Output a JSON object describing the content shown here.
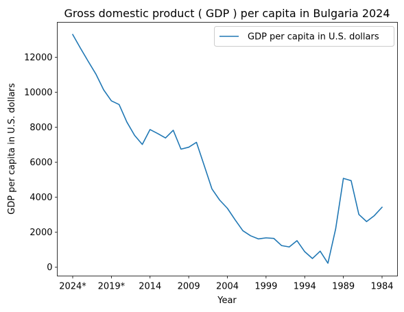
{
  "chart_data": {
    "type": "line",
    "title": "Gross domestic product ( GDP ) per capita in Bulgaria 2024",
    "xlabel": "Year",
    "ylabel": "GDP per capita in U.S. dollars",
    "x": [
      "2024*",
      "2023*",
      "2022*",
      "2021*",
      "2020*",
      "2019*",
      "2018",
      "2017",
      "2016",
      "2015",
      "2014",
      "2013",
      "2012",
      "2011",
      "2010",
      "2009",
      "2008",
      "2007",
      "2006",
      "2005",
      "2004",
      "2003",
      "2002",
      "2001",
      "2000",
      "1999",
      "1998",
      "1997",
      "1996",
      "1995",
      "1994",
      "1993",
      "1992",
      "1991",
      "1990",
      "1989",
      "1988",
      "1987",
      "1986",
      "1985",
      "1984"
    ],
    "x_tick_labels": [
      "2024*",
      "2019*",
      "2014",
      "2009",
      "2004",
      "1999",
      "1994",
      "1989",
      "1984"
    ],
    "series": [
      {
        "name": "GDP per capita in U.S. dollars",
        "color": "#1f77b4",
        "values": [
          13300,
          12520,
          11770,
          11040,
          10140,
          9510,
          9300,
          8300,
          7540,
          7020,
          7870,
          7640,
          7390,
          7830,
          6750,
          6860,
          7140,
          5820,
          4480,
          3840,
          3370,
          2710,
          2090,
          1800,
          1620,
          1680,
          1650,
          1240,
          1160,
          1520,
          890,
          500,
          920,
          230,
          2190,
          5080,
          4950,
          3020,
          2610,
          2950,
          3430
        ]
      }
    ],
    "ylim": [
      -500,
      14000
    ],
    "y_ticks": [
      0,
      2000,
      4000,
      6000,
      8000,
      10000,
      12000
    ],
    "legend_position": "top-right",
    "grid": false
  }
}
